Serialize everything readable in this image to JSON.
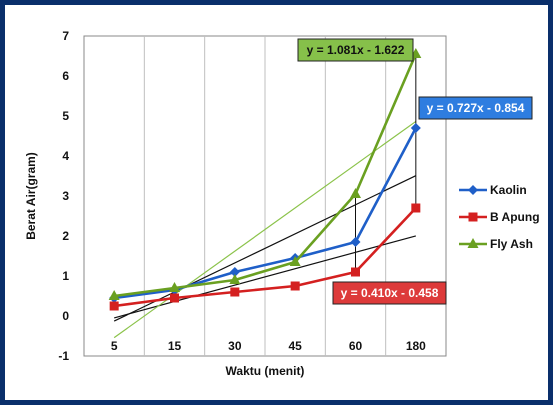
{
  "chart_data": {
    "type": "line",
    "categories": [
      "5",
      "15",
      "30",
      "45",
      "60",
      "180"
    ],
    "xlabel": "Waktu (menit)",
    "ylabel": "Berat Air(gram)",
    "ylim": [
      -1,
      7
    ],
    "yticks": [
      "-1",
      "0",
      "1",
      "2",
      "3",
      "4",
      "5",
      "6",
      "7"
    ],
    "grid": "vertical",
    "legend_position": "right",
    "series": [
      {
        "name": "Kaolin",
        "values": [
          0.45,
          0.65,
          1.1,
          1.45,
          1.85,
          4.7
        ],
        "color": "#1f5fc8",
        "marker": "diamond"
      },
      {
        "name": "B Apung",
        "values": [
          0.25,
          0.45,
          0.6,
          0.75,
          1.1,
          2.7
        ],
        "color": "#d42020",
        "marker": "square"
      },
      {
        "name": "Fly Ash",
        "values": [
          0.5,
          0.7,
          0.9,
          1.35,
          3.05,
          6.55
        ],
        "color": "#6aa021",
        "marker": "triangle"
      }
    ],
    "trendlines": [
      {
        "series": "Kaolin",
        "equation": "y = 0.727x - 0.854",
        "slope": 0.727,
        "intercept": -0.854,
        "color": "#111111",
        "label_bg": "#2e7de0",
        "label_fg": "#ffffff"
      },
      {
        "series": "B Apung",
        "equation": "y = 0.410x - 0.458",
        "slope": 0.41,
        "intercept": -0.458,
        "color": "#111111",
        "label_bg": "#dd3a3a",
        "label_fg": "#ffffff"
      },
      {
        "series": "Fly Ash",
        "equation": "y = 1.081x - 1.622",
        "slope": 1.081,
        "intercept": -1.622,
        "color": "#8bc34a",
        "label_bg": "#86c04a",
        "label_fg": "#111111"
      }
    ]
  }
}
